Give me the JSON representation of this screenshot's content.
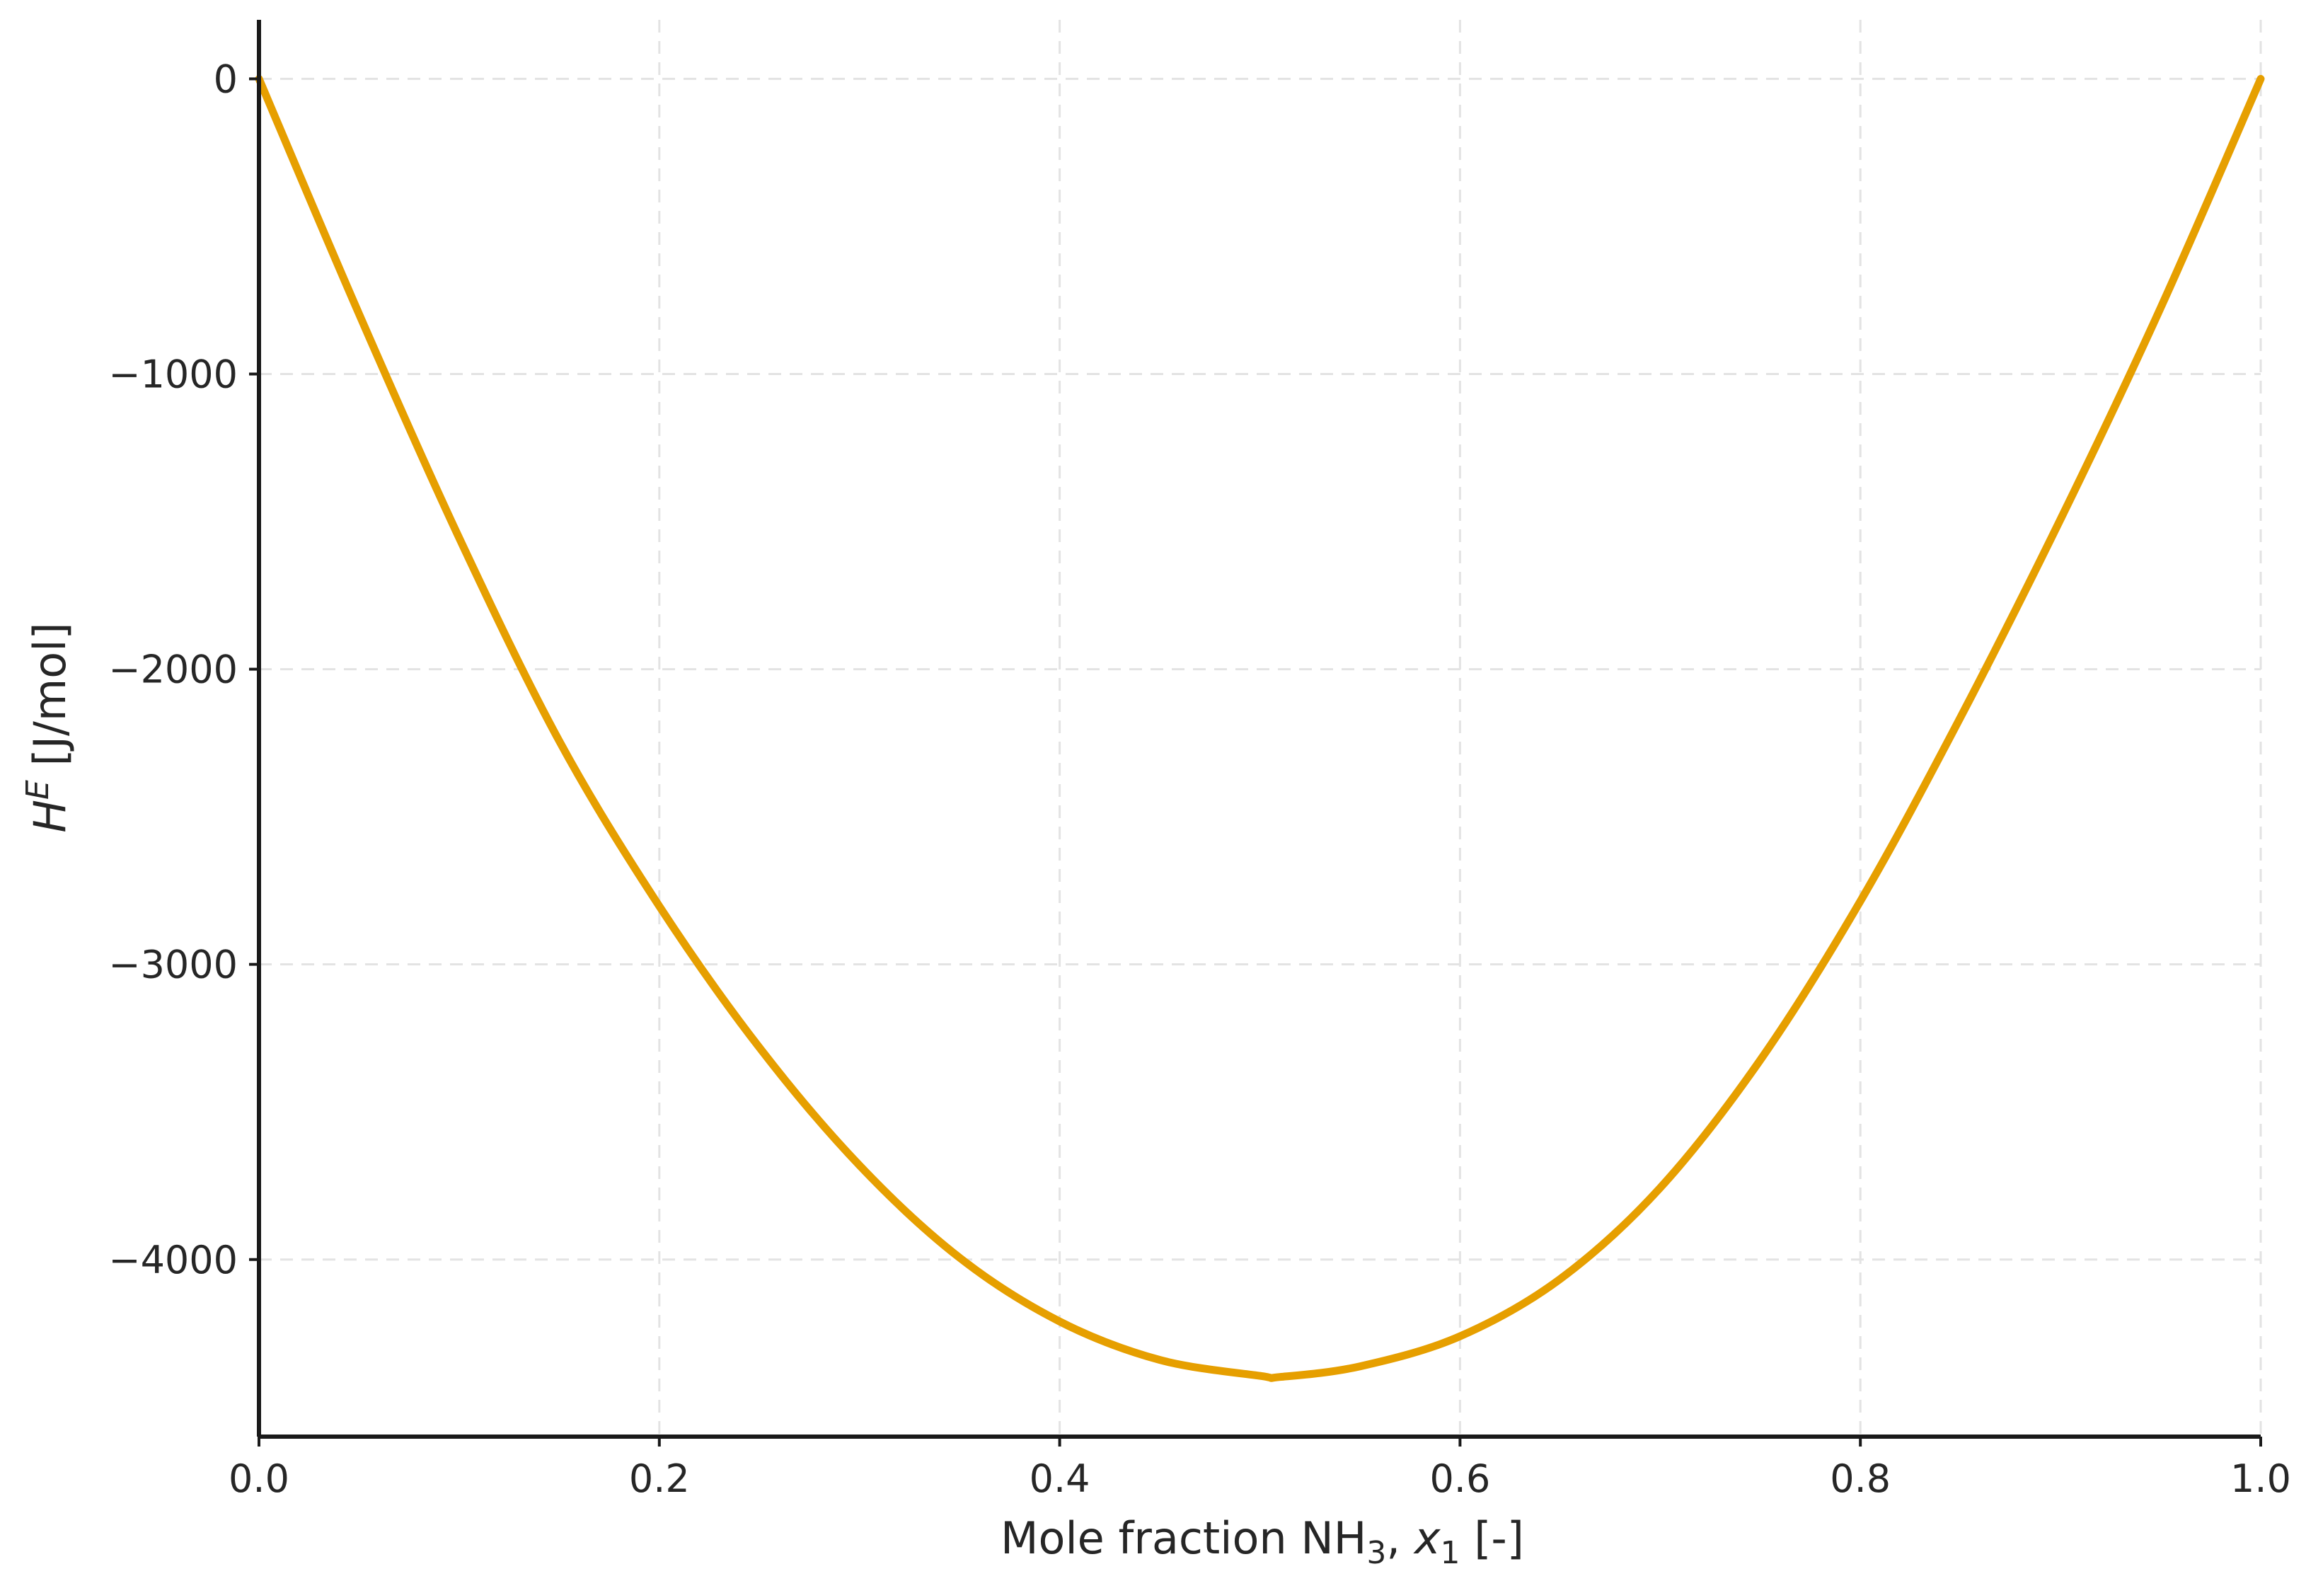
{
  "chart_data": {
    "type": "line",
    "title": "",
    "xlabel": {
      "text": "Mole fraction NH",
      "sub": "3",
      "rest": ", ",
      "var": "x",
      "var_sub": "1",
      "unit": " [-]"
    },
    "ylabel": {
      "var": "H",
      "sup": "E",
      "unit": " [J/mol]"
    },
    "xlim": [
      0.0,
      1.0
    ],
    "ylim": [
      -4600,
      200
    ],
    "xticks": [
      0.0,
      0.2,
      0.4,
      0.6,
      0.8,
      1.0
    ],
    "xtick_labels": [
      "0.0",
      "0.2",
      "0.4",
      "0.6",
      "0.8",
      "1.0"
    ],
    "yticks": [
      0,
      -1000,
      -2000,
      -3000,
      -4000
    ],
    "ytick_labels": [
      "0",
      "−1000",
      "−2000",
      "−3000",
      "−4000"
    ],
    "grid": true,
    "series": [
      {
        "color": "#E69F00",
        "x": [
          0.0,
          0.05,
          0.1,
          0.15,
          0.2,
          0.25,
          0.3,
          0.35,
          0.4,
          0.45,
          0.5,
          0.51,
          0.55,
          0.6,
          0.65,
          0.7,
          0.75,
          0.8,
          0.85,
          0.9,
          0.95,
          1.0
        ],
        "y": [
          0,
          -797,
          -1555,
          -2243,
          -2803,
          -3282,
          -3681,
          -3994,
          -4210,
          -4340,
          -4394,
          -4398,
          -4362,
          -4260,
          -4066,
          -3757,
          -3324,
          -2786,
          -2163,
          -1492,
          -776,
          0
        ]
      }
    ]
  }
}
